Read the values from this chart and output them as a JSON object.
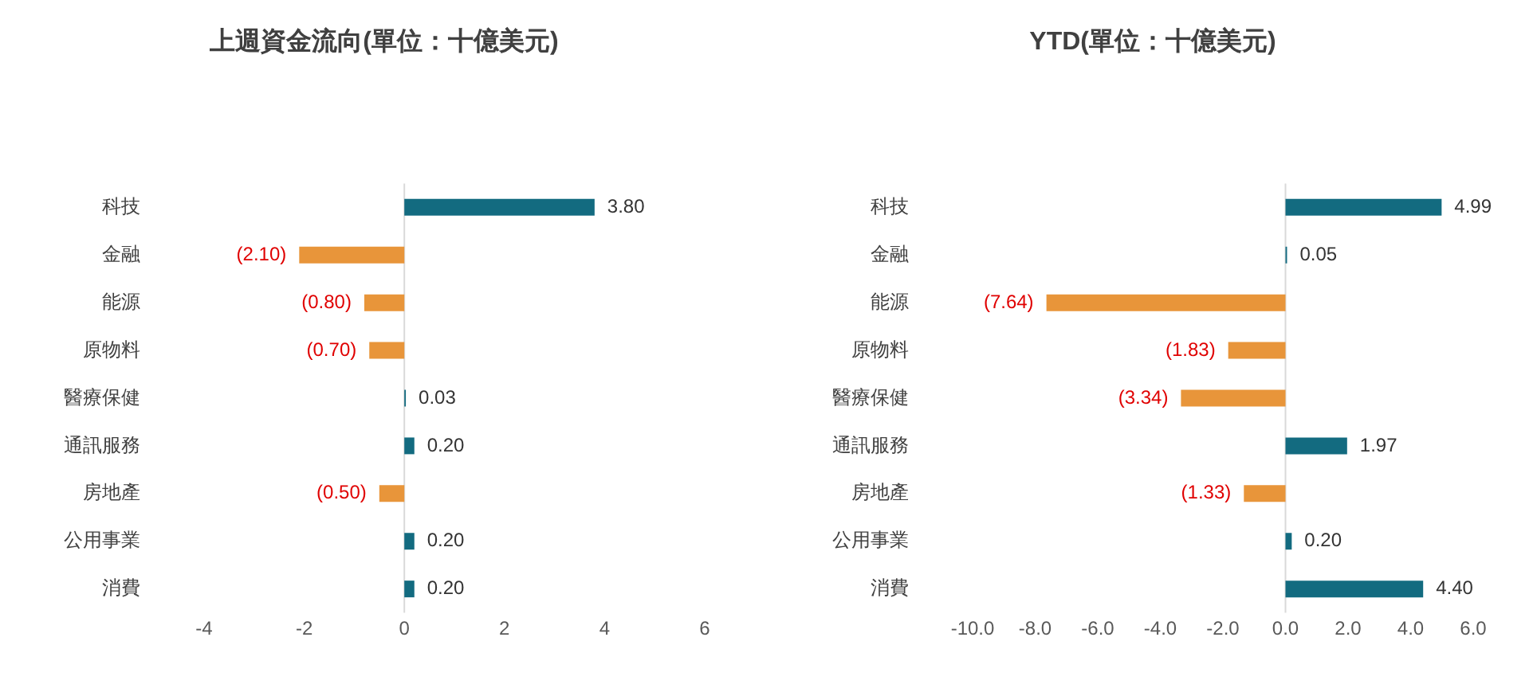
{
  "chart_data": [
    {
      "type": "bar",
      "title": "上週資金流向(單位：十億美元)",
      "orientation": "horizontal",
      "categories": [
        "科技",
        "金融",
        "能源",
        "原物料",
        "醫療保健",
        "通訊服務",
        "房地產",
        "公用事業",
        "消費"
      ],
      "values": [
        3.8,
        -2.1,
        -0.8,
        -0.7,
        0.03,
        0.2,
        -0.5,
        0.2,
        0.2
      ],
      "colors": [
        "#136b80",
        "#e8953a",
        "#e8953a",
        "#e8953a",
        "#136b80",
        "#136b80",
        "#e8953a",
        "#136b80",
        "#136b80"
      ],
      "value_labels": [
        "3.80",
        "(2.10)",
        "(0.80)",
        "(0.70)",
        "0.03",
        "0.20",
        "(0.50)",
        "0.20",
        "0.20"
      ],
      "xlim": [
        -4,
        6
      ],
      "xticks": [
        -4,
        -2,
        0,
        2,
        4,
        6
      ],
      "ref_lines": [
        {
          "axis": "x",
          "value": 0,
          "color": "#d9d9d9"
        }
      ],
      "grid": false,
      "legend": false
    },
    {
      "type": "bar",
      "title": "YTD(單位：十億美元)",
      "orientation": "horizontal",
      "categories": [
        "科技",
        "金融",
        "能源",
        "原物料",
        "醫療保健",
        "通訊服務",
        "房地產",
        "公用事業",
        "消費"
      ],
      "values": [
        4.99,
        0.05,
        -7.64,
        -1.83,
        -3.34,
        1.97,
        -1.33,
        0.2,
        4.4
      ],
      "colors": [
        "#136b80",
        "#136b80",
        "#e8953a",
        "#e8953a",
        "#e8953a",
        "#136b80",
        "#e8953a",
        "#136b80",
        "#136b80"
      ],
      "value_labels": [
        "4.99",
        "0.05",
        "(7.64)",
        "(1.83)",
        "(3.34)",
        "1.97",
        "(1.33)",
        "0.20",
        "4.40"
      ],
      "xlim": [
        -10,
        6
      ],
      "xticks": [
        {
          "value": -10,
          "label": "-10.0"
        },
        {
          "value": -8,
          "label": "-8.0"
        },
        {
          "value": -6,
          "label": "-6.0"
        },
        {
          "value": -4,
          "label": "-4.0"
        },
        {
          "value": -2,
          "label": "-2.0"
        },
        {
          "value": 0,
          "label": "0.0"
        },
        {
          "value": 2,
          "label": "2.0"
        },
        {
          "value": 4,
          "label": "4.0"
        },
        {
          "value": 6,
          "label": "6.0"
        }
      ],
      "ref_lines": [
        {
          "axis": "x",
          "value": 0,
          "color": "#d9d9d9"
        }
      ],
      "grid": false,
      "legend": false
    }
  ]
}
